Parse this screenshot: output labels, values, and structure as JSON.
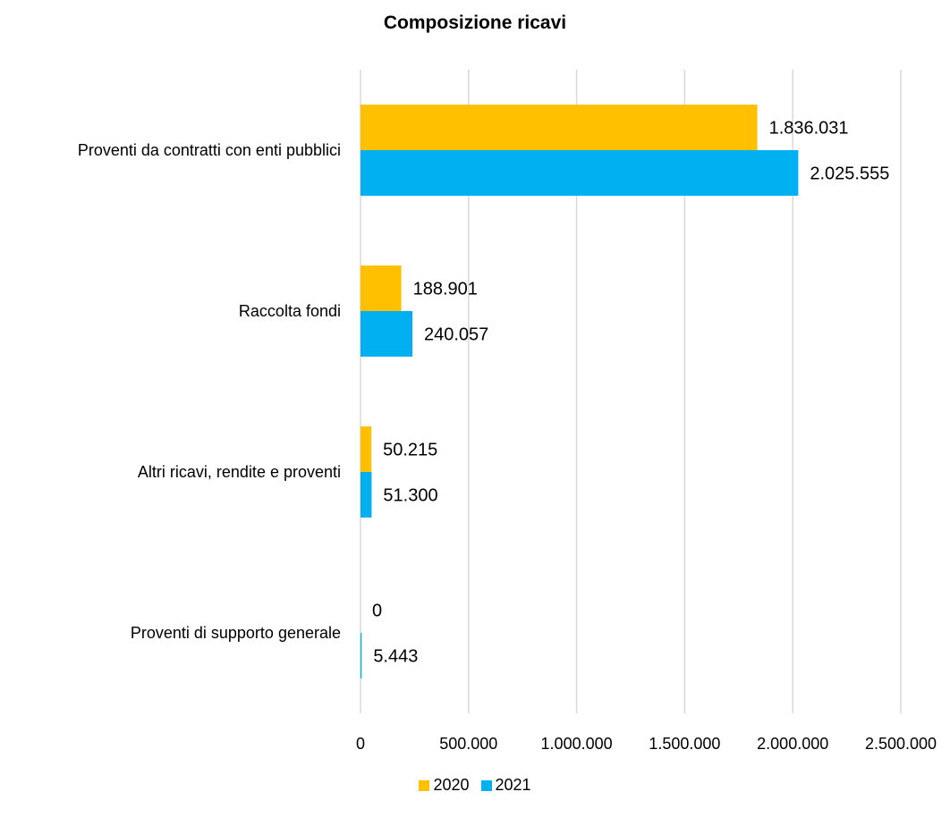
{
  "chart_data": {
    "type": "bar",
    "orientation": "horizontal",
    "title": "Composizione ricavi",
    "categories": [
      "Proventi da contratti con enti pubblici",
      "Raccolta fondi",
      "Altri ricavi, rendite e proventi",
      "Proventi di supporto generale"
    ],
    "series": [
      {
        "name": "2020",
        "color": "#FFC000",
        "values": [
          1836031,
          188901,
          50215,
          0
        ]
      },
      {
        "name": "2021",
        "color": "#00B0F0",
        "values": [
          2025555,
          240057,
          51300,
          5443
        ]
      }
    ],
    "data_labels": [
      [
        "1.836.031",
        "188.901",
        "50.215",
        "0"
      ],
      [
        "2.025.555",
        "240.057",
        "51.300",
        "5.443"
      ]
    ],
    "xlim": [
      0,
      2500000
    ],
    "x_ticks": [
      0,
      500000,
      1000000,
      1500000,
      2000000,
      2500000
    ],
    "x_tick_labels": [
      "0",
      "500.000",
      "1.000.000",
      "1.500.000",
      "2.000.000",
      "2.500.000"
    ],
    "grid": "vertical",
    "legend_position": "bottom"
  }
}
